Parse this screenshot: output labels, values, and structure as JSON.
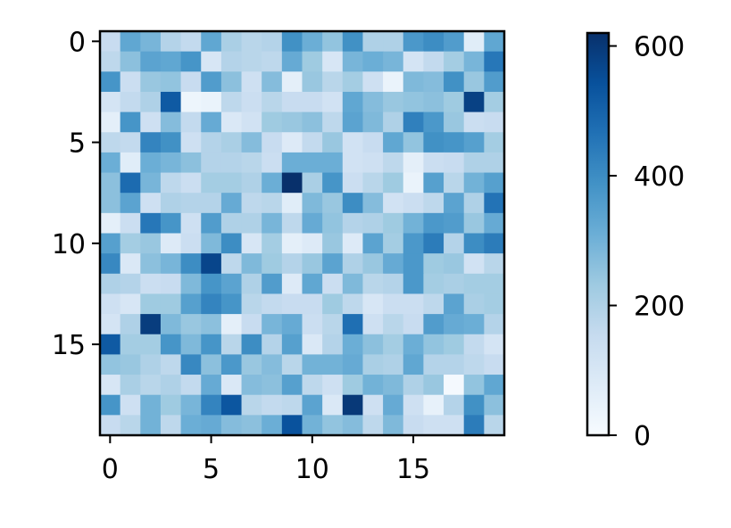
{
  "chart_data": {
    "type": "heatmap",
    "colormap": "Blues",
    "rows": 20,
    "cols": 20,
    "xticks": [
      0,
      5,
      10,
      15
    ],
    "yticks": [
      0,
      5,
      10,
      15
    ],
    "colorbar": {
      "vmin": 0,
      "vmax": 620,
      "ticks": [
        0,
        200,
        400,
        600
      ]
    },
    "values": [
      [
        150,
        330,
        290,
        190,
        160,
        330,
        210,
        180,
        190,
        390,
        310,
        250,
        390,
        200,
        200,
        370,
        400,
        360,
        70,
        330
      ],
      [
        170,
        260,
        340,
        330,
        380,
        100,
        190,
        180,
        170,
        320,
        230,
        100,
        290,
        310,
        290,
        110,
        160,
        220,
        290,
        450
      ],
      [
        380,
        140,
        240,
        250,
        150,
        360,
        260,
        130,
        270,
        60,
        240,
        180,
        220,
        130,
        40,
        280,
        270,
        390,
        240,
        360
      ],
      [
        110,
        160,
        200,
        520,
        30,
        40,
        170,
        140,
        180,
        150,
        150,
        120,
        330,
        270,
        240,
        250,
        260,
        230,
        580,
        220
      ],
      [
        60,
        380,
        130,
        270,
        160,
        320,
        90,
        120,
        230,
        240,
        260,
        170,
        340,
        280,
        200,
        430,
        370,
        240,
        140,
        150
      ],
      [
        170,
        160,
        420,
        390,
        130,
        190,
        210,
        270,
        150,
        80,
        160,
        240,
        120,
        150,
        330,
        250,
        390,
        380,
        350,
        220
      ],
      [
        310,
        70,
        310,
        290,
        260,
        190,
        190,
        180,
        140,
        310,
        310,
        310,
        120,
        130,
        170,
        60,
        140,
        150,
        200,
        200
      ],
      [
        260,
        480,
        290,
        170,
        140,
        220,
        220,
        200,
        310,
        620,
        210,
        380,
        140,
        180,
        230,
        40,
        350,
        180,
        300,
        350
      ],
      [
        260,
        340,
        130,
        200,
        190,
        190,
        320,
        170,
        180,
        70,
        280,
        240,
        400,
        270,
        120,
        140,
        170,
        340,
        200,
        460
      ],
      [
        60,
        140,
        450,
        380,
        130,
        360,
        200,
        200,
        290,
        170,
        320,
        250,
        190,
        200,
        230,
        300,
        370,
        360,
        240,
        320
      ],
      [
        350,
        220,
        240,
        80,
        140,
        280,
        400,
        100,
        220,
        60,
        80,
        240,
        80,
        340,
        220,
        370,
        440,
        190,
        400,
        440
      ],
      [
        410,
        90,
        260,
        290,
        400,
        570,
        170,
        280,
        230,
        190,
        240,
        340,
        200,
        240,
        320,
        370,
        230,
        240,
        120,
        180
      ],
      [
        200,
        190,
        140,
        150,
        280,
        380,
        340,
        200,
        360,
        80,
        330,
        140,
        280,
        180,
        190,
        370,
        220,
        210,
        220,
        220
      ],
      [
        130,
        100,
        230,
        230,
        350,
        420,
        380,
        180,
        160,
        150,
        150,
        230,
        170,
        100,
        140,
        140,
        170,
        340,
        210,
        220
      ],
      [
        110,
        200,
        590,
        280,
        240,
        260,
        60,
        150,
        290,
        320,
        140,
        180,
        470,
        130,
        180,
        150,
        360,
        320,
        310,
        190
      ],
      [
        520,
        220,
        220,
        380,
        280,
        380,
        180,
        400,
        190,
        350,
        90,
        190,
        310,
        260,
        220,
        310,
        250,
        230,
        160,
        110
      ],
      [
        250,
        240,
        200,
        170,
        410,
        260,
        370,
        240,
        270,
        180,
        300,
        300,
        320,
        210,
        200,
        330,
        190,
        190,
        170,
        150
      ],
      [
        100,
        210,
        180,
        200,
        160,
        320,
        90,
        270,
        260,
        350,
        170,
        130,
        230,
        300,
        280,
        200,
        240,
        10,
        250,
        330
      ],
      [
        380,
        130,
        300,
        230,
        290,
        420,
        530,
        180,
        160,
        170,
        340,
        90,
        600,
        130,
        320,
        130,
        50,
        190,
        390,
        260
      ],
      [
        150,
        180,
        300,
        170,
        310,
        320,
        270,
        260,
        310,
        540,
        300,
        250,
        270,
        170,
        280,
        150,
        130,
        130,
        440,
        180
      ]
    ]
  }
}
